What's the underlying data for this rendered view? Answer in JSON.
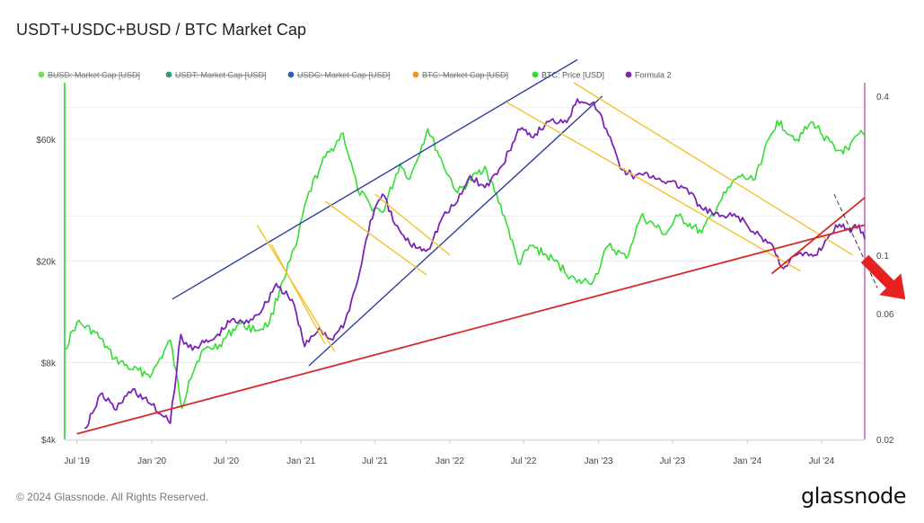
{
  "title": "USDT+USDC+BUSD / BTC Market Cap",
  "copyright": "© 2024 Glassnode. All Rights Reserved.",
  "brand": "glassnode",
  "colors": {
    "price": "#33dd33",
    "formula": "#7a25b3",
    "channel_blue": "#2f3fa0",
    "channel_yellow": "#f2c230",
    "support_red": "#d42a2a",
    "arrow_red": "#e82020",
    "left_axis": "#22cc22",
    "right_axis": "#c060c0",
    "busd": "#7ed957",
    "usdt": "#26a17b",
    "usdc": "#2f5ebd",
    "btc_mcap": "#f7931a"
  },
  "chart_data": {
    "type": "line",
    "title": "USDT+USDC+BUSD / BTC Market Cap",
    "x_ticks": [
      "Jul '19",
      "Jan '20",
      "Jul '20",
      "Jan '21",
      "Jul '21",
      "Jan '22",
      "Jul '22",
      "Jan '23",
      "Jul '23",
      "Jan '24",
      "Jul '24"
    ],
    "x_range": [
      "2019-06-01",
      "2024-10-15"
    ],
    "y_left": {
      "scale": "log",
      "unit": "USD",
      "ticks": [
        "$4k",
        "$8k",
        "$20k",
        "$60k"
      ],
      "tick_values": [
        4000,
        8000,
        20000,
        60000
      ],
      "range": [
        4000,
        100000
      ]
    },
    "y_right": {
      "scale": "log",
      "ticks": [
        "0.02",
        "0.06",
        "0.1",
        "0.4"
      ],
      "tick_values": [
        0.02,
        0.06,
        0.1,
        0.4
      ],
      "range": [
        0.02,
        0.45
      ]
    },
    "grid": true,
    "legend_position": "top-left",
    "legend": [
      {
        "label": "BUSD: Market Cap [USD]",
        "visible": false,
        "color_key": "busd"
      },
      {
        "label": "USDT: Market Cap [USD]",
        "visible": false,
        "color_key": "usdt"
      },
      {
        "label": "USDC: Market Cap [USD]",
        "visible": false,
        "color_key": "usdc"
      },
      {
        "label": "BTC: Market Cap [USD]",
        "visible": false,
        "color_key": "btc_mcap"
      },
      {
        "label": "BTC: Price [USD]",
        "visible": true,
        "color_key": "price"
      },
      {
        "label": "Formula 2",
        "visible": true,
        "color_key": "formula"
      }
    ],
    "series": [
      {
        "name": "BTC: Price [USD]",
        "axis": "left",
        "x": [
          "2019-06-01",
          "2019-07-01",
          "2019-08-15",
          "2019-10-01",
          "2019-11-15",
          "2020-01-01",
          "2020-02-15",
          "2020-03-15",
          "2020-04-01",
          "2020-05-01",
          "2020-06-15",
          "2020-08-01",
          "2020-09-15",
          "2020-10-15",
          "2020-11-15",
          "2020-12-20",
          "2021-01-15",
          "2021-02-20",
          "2021-04-14",
          "2021-05-20",
          "2021-06-20",
          "2021-07-20",
          "2021-09-01",
          "2021-09-25",
          "2021-11-08",
          "2021-12-15",
          "2022-01-20",
          "2022-03-28",
          "2022-05-15",
          "2022-06-18",
          "2022-07-20",
          "2022-09-15",
          "2022-11-09",
          "2022-12-20",
          "2023-01-25",
          "2023-03-10",
          "2023-04-15",
          "2023-06-15",
          "2023-07-15",
          "2023-09-11",
          "2023-10-25",
          "2023-12-10",
          "2024-01-15",
          "2024-03-14",
          "2024-05-01",
          "2024-06-10",
          "2024-08-05",
          "2024-09-06",
          "2024-10-01",
          "2024-10-15"
        ],
        "y": [
          9000,
          11500,
          10500,
          8300,
          7500,
          7200,
          9800,
          5300,
          6800,
          8800,
          9400,
          11400,
          10700,
          11400,
          16500,
          23000,
          35000,
          48000,
          63500,
          38000,
          33000,
          31000,
          48000,
          42000,
          66000,
          48000,
          37000,
          47000,
          30000,
          19500,
          23000,
          20000,
          16500,
          16800,
          23000,
          20500,
          30000,
          25500,
          30000,
          25800,
          34000,
          43000,
          41500,
          71000,
          60000,
          70000,
          54000,
          54500,
          63000,
          62000
        ]
      },
      {
        "name": "Formula 2",
        "axis": "right",
        "x": [
          "2019-07-20",
          "2019-09-01",
          "2019-10-01",
          "2019-11-15",
          "2020-01-01",
          "2020-02-15",
          "2020-03-12",
          "2020-03-20",
          "2020-04-15",
          "2020-06-01",
          "2020-07-15",
          "2020-08-15",
          "2020-09-30",
          "2020-11-01",
          "2020-12-15",
          "2021-01-10",
          "2021-02-15",
          "2021-03-15",
          "2021-04-14",
          "2021-05-20",
          "2021-06-20",
          "2021-07-20",
          "2021-08-20",
          "2021-09-25",
          "2021-11-08",
          "2021-12-15",
          "2022-01-20",
          "2022-02-20",
          "2022-03-28",
          "2022-05-12",
          "2022-06-18",
          "2022-07-20",
          "2022-09-01",
          "2022-10-20",
          "2022-11-10",
          "2022-12-20",
          "2023-01-20",
          "2023-02-28",
          "2023-04-01",
          "2023-05-15",
          "2023-06-20",
          "2023-08-01",
          "2023-09-11",
          "2023-10-25",
          "2023-12-10",
          "2024-01-20",
          "2024-03-01",
          "2024-03-25",
          "2024-05-01",
          "2024-06-15",
          "2024-07-15",
          "2024-08-05",
          "2024-09-06",
          "2024-10-01",
          "2024-10-15"
        ],
        "y": [
          0.022,
          0.03,
          0.026,
          0.031,
          0.027,
          0.023,
          0.05,
          0.046,
          0.045,
          0.048,
          0.057,
          0.055,
          0.063,
          0.078,
          0.065,
          0.045,
          0.053,
          0.048,
          0.053,
          0.08,
          0.135,
          0.17,
          0.13,
          0.11,
          0.105,
          0.14,
          0.16,
          0.2,
          0.18,
          0.22,
          0.3,
          0.28,
          0.32,
          0.33,
          0.39,
          0.38,
          0.3,
          0.21,
          0.2,
          0.2,
          0.19,
          0.18,
          0.15,
          0.14,
          0.14,
          0.12,
          0.11,
          0.09,
          0.1,
          0.1,
          0.115,
          0.13,
          0.125,
          0.13,
          0.115
        ]
      }
    ],
    "annotations": [
      {
        "type": "channel_line",
        "color_key": "channel_blue",
        "from": [
          "2020-02-20",
          0.068
        ],
        "to": [
          "2022-11-10",
          0.55
        ]
      },
      {
        "type": "channel_line",
        "color_key": "channel_blue",
        "from": [
          "2021-01-20",
          0.038
        ],
        "to": [
          "2023-01-10",
          0.4
        ]
      },
      {
        "type": "channel_line",
        "color_key": "channel_yellow",
        "from": [
          "2020-10-20",
          0.11
        ],
        "to": [
          "2021-03-01",
          0.046
        ]
      },
      {
        "type": "channel_line",
        "color_key": "channel_yellow",
        "from": [
          "2020-09-15",
          0.13
        ],
        "to": [
          "2021-03-25",
          0.043
        ]
      },
      {
        "type": "channel_line",
        "color_key": "channel_yellow",
        "from": [
          "2021-03-01",
          0.16
        ],
        "to": [
          "2021-11-05",
          0.084
        ]
      },
      {
        "type": "channel_line",
        "color_key": "channel_yellow",
        "from": [
          "2021-07-01",
          0.17
        ],
        "to": [
          "2022-01-01",
          0.1
        ]
      },
      {
        "type": "channel_line",
        "color_key": "channel_yellow",
        "from": [
          "2022-05-20",
          0.38
        ],
        "to": [
          "2024-05-10",
          0.087
        ]
      },
      {
        "type": "channel_line",
        "color_key": "channel_yellow",
        "from": [
          "2022-11-01",
          0.45
        ],
        "to": [
          "2024-09-15",
          0.1
        ]
      },
      {
        "type": "support_line",
        "color_key": "support_red",
        "from": [
          "2019-07-01",
          0.021
        ],
        "to": [
          "2024-10-15",
          0.13
        ]
      },
      {
        "type": "support_line",
        "color_key": "support_red",
        "from": [
          "2024-03-01",
          0.085
        ],
        "to": [
          "2024-10-15",
          0.165
        ]
      },
      {
        "type": "trend_line",
        "color": "#222222",
        "dashed": true,
        "from": [
          "2024-08-01",
          0.17
        ],
        "to": [
          "2024-11-15",
          0.075
        ]
      },
      {
        "type": "arrow",
        "color_key": "arrow_red",
        "direction": "down-right"
      }
    ]
  }
}
